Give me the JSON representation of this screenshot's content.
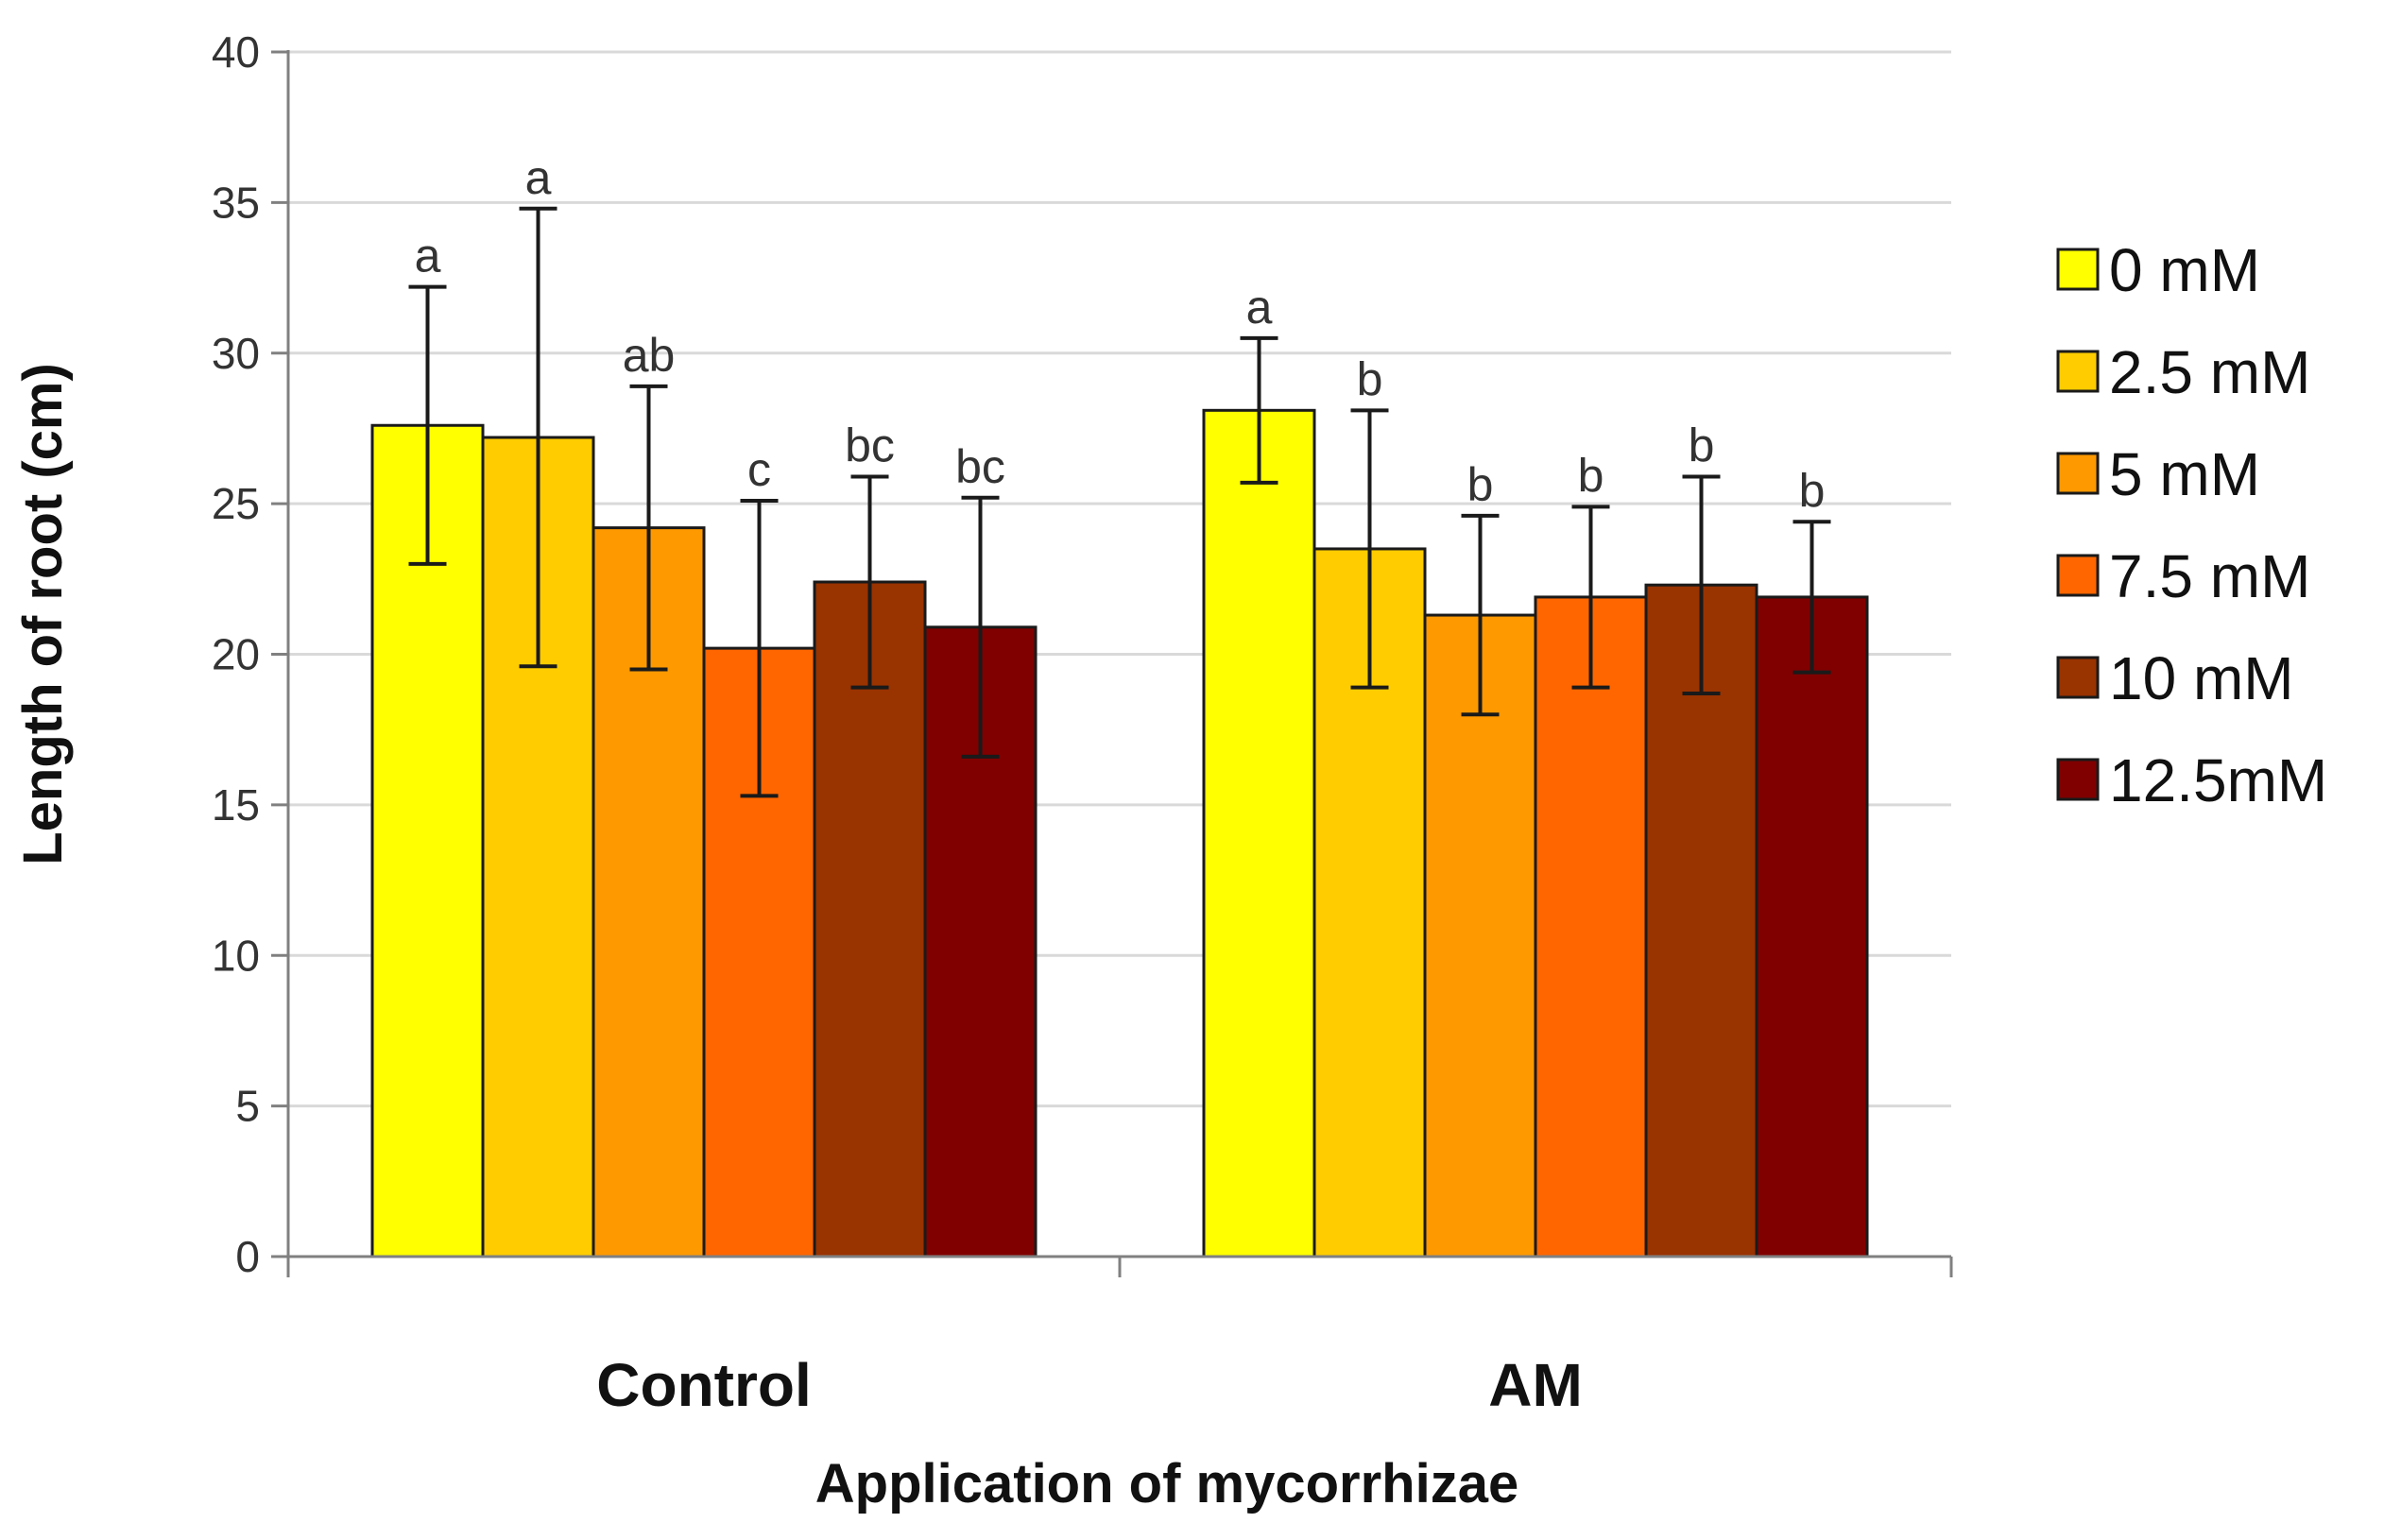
{
  "chart_data": {
    "type": "bar",
    "title": "",
    "xlabel": "Application of mycorrhizae",
    "ylabel": "Length of root  (cm)",
    "ylim": [
      0,
      40
    ],
    "yticks": [
      0,
      5,
      10,
      15,
      20,
      25,
      30,
      35,
      40
    ],
    "grid": true,
    "legend_position": "right",
    "categories": [
      "Control",
      "AM"
    ],
    "series": [
      {
        "name": "0 mM",
        "color": "#FFFF00",
        "values": [
          27.6,
          28.1
        ],
        "errors": [
          4.6,
          2.4
        ],
        "labels": [
          "a",
          "a"
        ]
      },
      {
        "name": "2.5 mM",
        "color": "#FFCC00",
        "values": [
          27.2,
          23.5
        ],
        "errors": [
          7.6,
          4.6
        ],
        "labels": [
          "a",
          "b"
        ]
      },
      {
        "name": "5 mM",
        "color": "#FF9900",
        "values": [
          24.2,
          21.3
        ],
        "errors": [
          4.7,
          3.3
        ],
        "labels": [
          "ab",
          "b"
        ]
      },
      {
        "name": "7.5 mM",
        "color": "#FF6600",
        "values": [
          20.2,
          21.9
        ],
        "errors": [
          4.9,
          3.0
        ],
        "labels": [
          "c",
          "b"
        ]
      },
      {
        "name": "10 mM",
        "color": "#993300",
        "values": [
          22.4,
          22.3
        ],
        "errors": [
          3.5,
          3.6
        ],
        "labels": [
          "bc",
          "b"
        ]
      },
      {
        "name": "12.5mM",
        "color": "#800000",
        "values": [
          20.9,
          21.9
        ],
        "errors": [
          4.3,
          2.5
        ],
        "labels": [
          "bc",
          "b"
        ]
      }
    ]
  }
}
